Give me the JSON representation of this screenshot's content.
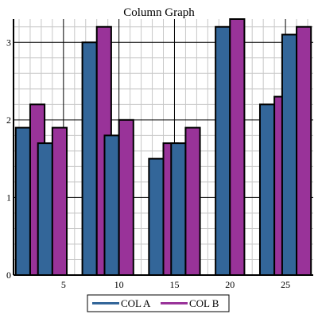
{
  "chart_data": {
    "type": "bar",
    "title": "Column Graph",
    "xlabel": "",
    "ylabel": "",
    "x": [
      2,
      4,
      8,
      10,
      14,
      16,
      20,
      24,
      26
    ],
    "xlim": [
      0.5,
      27.5
    ],
    "xticks": [
      5,
      10,
      15,
      20,
      25
    ],
    "ylim": [
      0,
      3.3
    ],
    "yticks": [
      0,
      1,
      2,
      3
    ],
    "grid": true,
    "legend_position": "bottom-center",
    "series": [
      {
        "name": "COL A",
        "color": "#336699",
        "values": [
          1.9,
          1.7,
          3.0,
          1.8,
          1.5,
          1.7,
          3.2,
          2.2,
          3.1
        ]
      },
      {
        "name": "COL B",
        "color": "#993399",
        "values": [
          2.2,
          1.9,
          3.2,
          2.0,
          1.7,
          1.9,
          3.3,
          2.3,
          3.2
        ]
      }
    ]
  }
}
